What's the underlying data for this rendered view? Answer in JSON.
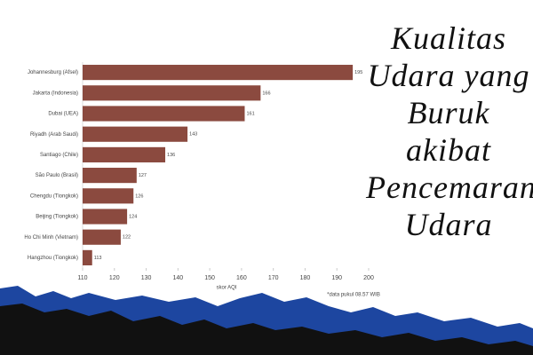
{
  "chart_data": {
    "type": "bar",
    "orientation": "horizontal",
    "title": "Kualitas Udara yang Buruk akibat Pencemaran Udara",
    "categories": [
      "Johannesburg (Afsel)",
      "Jakarta (Indonesia)",
      "Dubai (UEA)",
      "Riyadh (Arab Saudi)",
      "Santiago (Chile)",
      "São Paulo (Brasil)",
      "Chengdu (Tiongkok)",
      "Beijing (Tiongkok)",
      "Ho Chi Minh (Vietnam)",
      "Hangzhou (Tiongkok)"
    ],
    "values": [
      195,
      166,
      161,
      143,
      136,
      127,
      126,
      124,
      122,
      113
    ],
    "color": "#8b4a3f",
    "xlim": [
      110,
      200
    ],
    "xticks": [
      110,
      120,
      130,
      140,
      150,
      160,
      170,
      180,
      190,
      200
    ],
    "x_label": "skor AQI",
    "note": "*data pukul 08.57 WIB",
    "grid": false
  }
}
